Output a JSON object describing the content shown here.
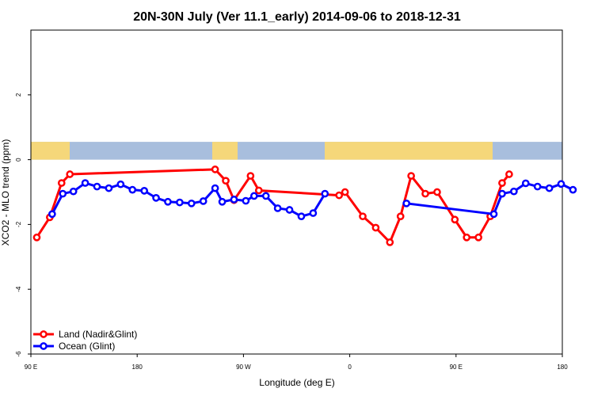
{
  "chart_data": {
    "type": "line",
    "title": "20N-30N July (Ver 11.1_early)   2014-09-06 to 2018-12-31",
    "xlabel": "Longitude (deg E)",
    "ylabel": "XCO2 - MLO trend (ppm)",
    "xlim": [
      90,
      540
    ],
    "ylim": [
      -6,
      4
    ],
    "x_ticks": [
      90,
      180,
      270,
      360,
      450,
      540
    ],
    "x_tick_labels": [
      "90 E",
      "180",
      "90 W",
      "0",
      "90 E",
      "180"
    ],
    "y_ticks": [
      -6,
      -4,
      -2,
      0,
      2
    ],
    "y_tick_labels": [
      "-6",
      "-4",
      "-2",
      "0",
      "2"
    ],
    "grid": false,
    "legend_position": "bottom-left",
    "background_band": {
      "y_range": [
        0,
        0.55
      ],
      "colors": {
        "land": "#f5d77a",
        "ocean": "#a8bedd"
      }
    },
    "series": [
      {
        "name": "Land (Nadir&Glint)",
        "color": "#ff0000",
        "points": [
          [
            95,
            -2.4
          ],
          [
            106,
            -1.78
          ],
          [
            116,
            -0.72
          ],
          [
            123,
            -0.45
          ],
          [
            246,
            -0.3
          ],
          [
            255,
            -0.65
          ],
          [
            262,
            -1.25
          ],
          [
            276,
            -0.5
          ],
          [
            283,
            -0.95
          ],
          [
            351,
            -1.1
          ],
          [
            356,
            -1.0
          ],
          [
            371,
            -1.75
          ],
          [
            382,
            -2.1
          ],
          [
            394,
            -2.55
          ],
          [
            403,
            -1.75
          ],
          [
            412,
            -0.5
          ],
          [
            424,
            -1.05
          ],
          [
            434,
            -1.0
          ],
          [
            449,
            -1.85
          ],
          [
            459,
            -2.4
          ],
          [
            469,
            -2.4
          ],
          [
            479,
            -1.75
          ],
          [
            489,
            -0.72
          ],
          [
            495,
            -0.45
          ]
        ]
      },
      {
        "name": "Ocean (Glint)",
        "color": "#0000ff",
        "points": [
          [
            108,
            -1.68
          ],
          [
            117,
            -1.05
          ],
          [
            126,
            -0.98
          ],
          [
            136,
            -0.72
          ],
          [
            146,
            -0.83
          ],
          [
            156,
            -0.88
          ],
          [
            166,
            -0.76
          ],
          [
            176,
            -0.93
          ],
          [
            186,
            -0.96
          ],
          [
            196,
            -1.18
          ],
          [
            206,
            -1.3
          ],
          [
            216,
            -1.32
          ],
          [
            226,
            -1.35
          ],
          [
            236,
            -1.28
          ],
          [
            246,
            -0.88
          ],
          [
            252,
            -1.3
          ],
          [
            262,
            -1.23
          ],
          [
            272,
            -1.27
          ],
          [
            279,
            -1.12
          ],
          [
            289,
            -1.12
          ],
          [
            299,
            -1.5
          ],
          [
            309,
            -1.55
          ],
          [
            319,
            -1.75
          ],
          [
            329,
            -1.65
          ],
          [
            339,
            -1.05
          ],
          [
            351,
            null
          ],
          [
            392,
            null
          ],
          [
            408,
            -1.35
          ],
          [
            482,
            -1.68
          ],
          [
            489,
            -1.05
          ],
          [
            499,
            -0.98
          ],
          [
            509,
            -0.73
          ],
          [
            519,
            -0.83
          ],
          [
            529,
            -0.88
          ],
          [
            539,
            -0.75
          ],
          [
            549,
            -0.93
          ]
        ]
      }
    ]
  }
}
